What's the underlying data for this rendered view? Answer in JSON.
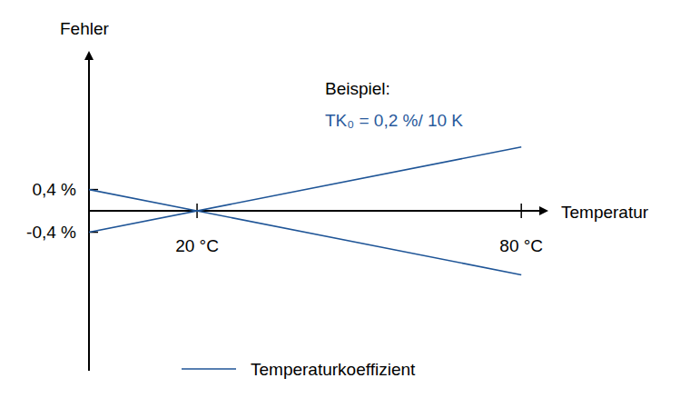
{
  "chart_data": {
    "type": "line",
    "y_label": "Fehler",
    "x_label": "Temperatur",
    "annotations": [
      {
        "text": "Beispiel:",
        "color": "#000000"
      },
      {
        "text": "TK₀ = 0,2 %/ 10 K",
        "color": "#2a5a9c"
      }
    ],
    "x": [
      0,
      80
    ],
    "series": [
      {
        "name": "Temperaturkoeffizient",
        "color": "#1f5597",
        "values": [
          0.4,
          -1.2
        ]
      },
      {
        "color": "#1f5597",
        "values": [
          -0.4,
          1.2
        ]
      }
    ],
    "xlim": [
      0,
      84
    ],
    "ylim": [
      -3,
      2.9
    ],
    "xticks": [
      {
        "value": 20,
        "label": "20 °C"
      },
      {
        "value": 80,
        "label": "80 °C"
      }
    ],
    "yticks": [
      {
        "value": 0.4,
        "label": "0,4 %"
      },
      {
        "value": -0.4,
        "label": "-0,4 %"
      }
    ],
    "grid": false,
    "legend": "bottom"
  }
}
